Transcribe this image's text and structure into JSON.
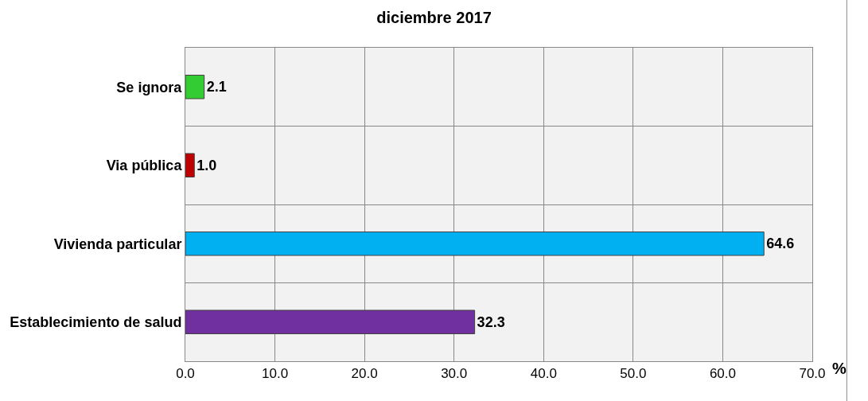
{
  "chart_data": {
    "type": "bar",
    "orientation": "horizontal",
    "title": "diciembre 2017",
    "xlabel": "%",
    "categories": [
      "Se ignora",
      "Via pública",
      "Vivienda particular",
      "Establecimiento de salud"
    ],
    "values": [
      2.1,
      1.0,
      64.6,
      32.3
    ],
    "colors": [
      "#33cc33",
      "#c00000",
      "#00b0f0",
      "#7030a0"
    ],
    "value_labels": [
      "2.1",
      "1.0",
      "64.6",
      "32.3"
    ],
    "xlim": [
      0,
      70
    ],
    "xticks": [
      {
        "value": 0,
        "label": "0.0"
      },
      {
        "value": 10,
        "label": "10.0"
      },
      {
        "value": 20,
        "label": "20.0"
      },
      {
        "value": 30,
        "label": "30.0"
      },
      {
        "value": 40,
        "label": "40.0"
      },
      {
        "value": 50,
        "label": "50.0"
      },
      {
        "value": 60,
        "label": "60.0"
      },
      {
        "value": 70,
        "label": "70.0"
      }
    ],
    "grid": true,
    "legend": false
  }
}
